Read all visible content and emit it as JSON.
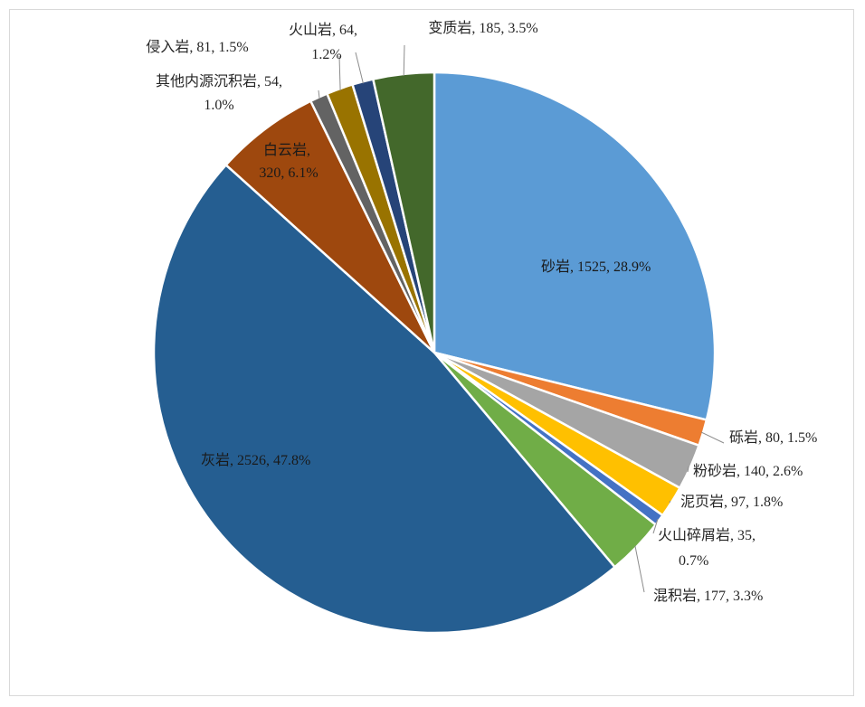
{
  "chart_data": {
    "type": "pie",
    "title": "",
    "slices": [
      {
        "name": "砂岩",
        "value": 1525,
        "percent": "28.9%",
        "color": "#5B9BD5"
      },
      {
        "name": "砾岩",
        "value": 80,
        "percent": "1.5%",
        "color": "#ED7D31"
      },
      {
        "name": "粉砂岩",
        "value": 140,
        "percent": "2.6%",
        "color": "#A5A5A5"
      },
      {
        "name": "泥页岩",
        "value": 97,
        "percent": "1.8%",
        "color": "#FFC000"
      },
      {
        "name": "火山碎屑岩",
        "value": 35,
        "percent": "0.7%",
        "color": "#4472C4"
      },
      {
        "name": "混积岩",
        "value": 177,
        "percent": "3.3%",
        "color": "#70AD47"
      },
      {
        "name": "灰岩",
        "value": 2526,
        "percent": "47.8%",
        "color": "#255E91"
      },
      {
        "name": "白云岩",
        "value": 320,
        "percent": "6.1%",
        "color": "#9E480E"
      },
      {
        "name": "其他内源沉积岩",
        "value": 54,
        "percent": "1.0%",
        "color": "#636363"
      },
      {
        "name": "侵入岩",
        "value": 81,
        "percent": "1.5%",
        "color": "#997300"
      },
      {
        "name": "火山岩",
        "value": 64,
        "percent": "1.2%",
        "color": "#264478"
      },
      {
        "name": "变质岩",
        "value": 185,
        "percent": "3.5%",
        "color": "#43682B"
      }
    ]
  }
}
